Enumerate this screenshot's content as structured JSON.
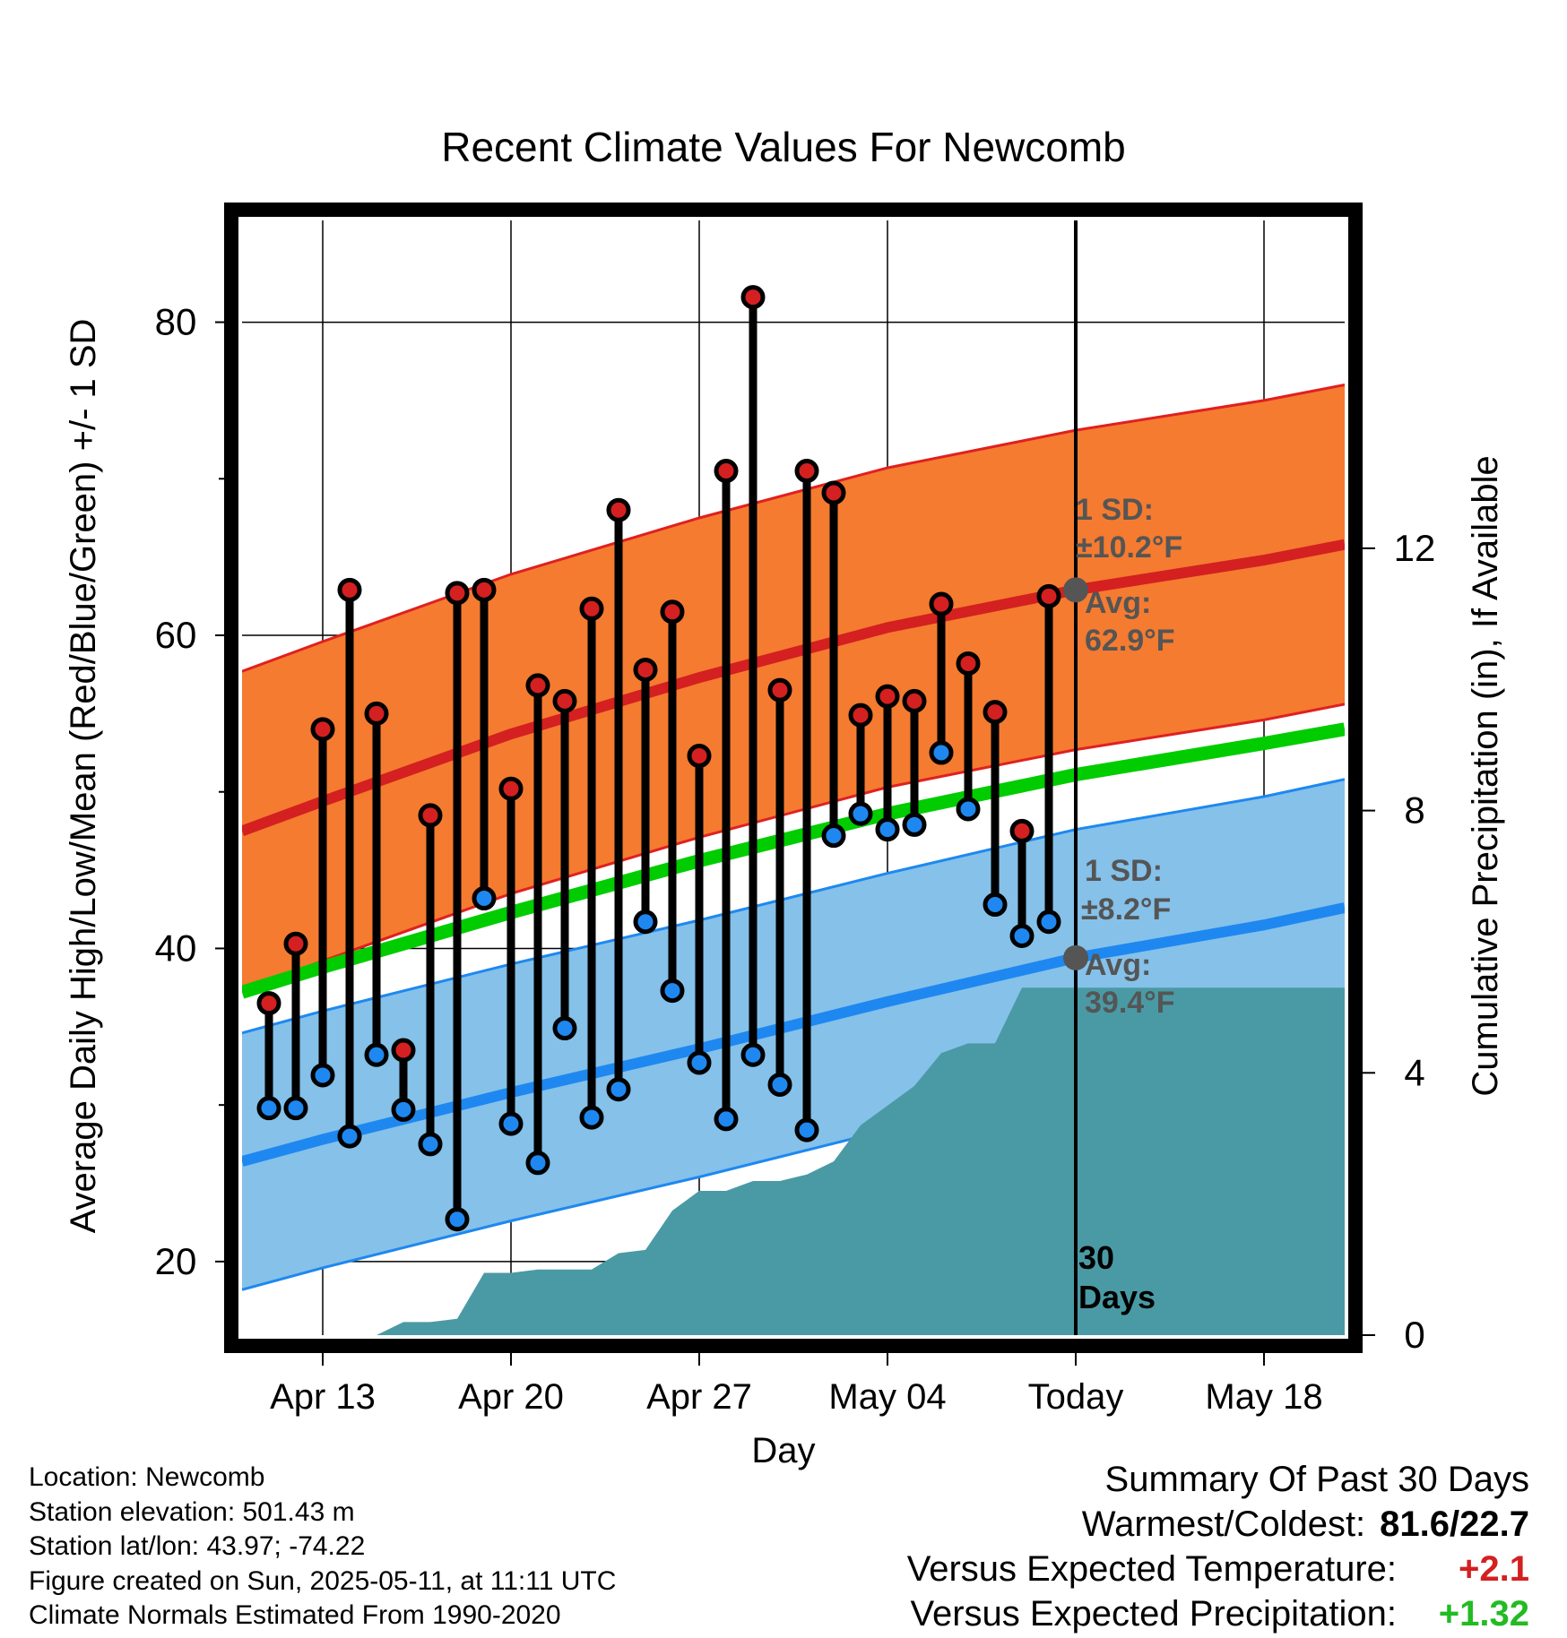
{
  "chart_data": {
    "type": "line",
    "title": "Recent Climate Values For Newcomb",
    "xlabel": "Day",
    "ylabel": "Average Daily High/Low/Mean (Red/Blue/Green) +/- 1 SD",
    "y2label": "Cumulative Precipitation (in), If Available",
    "x_ticks": [
      "Apr 13",
      "Apr 20",
      "Apr 27",
      "May 04",
      "Today",
      "May 18"
    ],
    "x_tick_dates": [
      "2025-04-13",
      "2025-04-20",
      "2025-04-27",
      "2025-05-04",
      "2025-05-11",
      "2025-05-18"
    ],
    "x_range": [
      "2025-04-10",
      "2025-05-21"
    ],
    "ylim": [
      15.3,
      86.5
    ],
    "y_ticks": [
      20,
      40,
      60,
      80
    ],
    "y2lim": [
      0,
      17
    ],
    "y2_ticks": [
      0,
      4,
      8,
      12
    ],
    "grid": true,
    "today": "2025-05-11",
    "today_label": "30 Days",
    "dates": [
      "2025-04-11",
      "2025-04-12",
      "2025-04-13",
      "2025-04-14",
      "2025-04-15",
      "2025-04-16",
      "2025-04-17",
      "2025-04-18",
      "2025-04-19",
      "2025-04-20",
      "2025-04-21",
      "2025-04-22",
      "2025-04-23",
      "2025-04-24",
      "2025-04-25",
      "2025-04-26",
      "2025-04-27",
      "2025-04-28",
      "2025-04-29",
      "2025-04-30",
      "2025-05-01",
      "2025-05-02",
      "2025-05-03",
      "2025-05-04",
      "2025-05-05",
      "2025-05-06",
      "2025-05-07",
      "2025-05-08",
      "2025-05-09",
      "2025-05-10"
    ],
    "observed_high": [
      36.5,
      40.3,
      54.0,
      62.9,
      55.0,
      33.5,
      48.5,
      62.7,
      62.9,
      50.2,
      56.8,
      55.8,
      61.7,
      68.0,
      57.8,
      61.5,
      52.3,
      70.5,
      81.6,
      56.5,
      70.5,
      69.1,
      54.9,
      56.1,
      55.8,
      62.0,
      58.2,
      55.1,
      47.5,
      62.5
    ],
    "observed_low": [
      29.8,
      29.8,
      31.9,
      28.0,
      33.2,
      29.7,
      27.5,
      22.7,
      43.2,
      28.8,
      26.3,
      34.9,
      29.2,
      31.0,
      41.7,
      37.3,
      32.7,
      29.1,
      33.2,
      31.3,
      28.4,
      47.2,
      48.6,
      47.6,
      47.9,
      52.5,
      48.9,
      42.8,
      40.8,
      41.7
    ],
    "normals": {
      "dates": [
        "2025-04-10",
        "2025-04-13",
        "2025-04-20",
        "2025-04-27",
        "2025-05-04",
        "2025-05-11",
        "2025-05-18",
        "2025-05-21"
      ],
      "high_avg": [
        47.5,
        49.4,
        53.7,
        57.3,
        60.5,
        62.9,
        64.8,
        65.8
      ],
      "high_sd": 10.2,
      "mean_avg": [
        37.2,
        38.8,
        42.3,
        45.6,
        48.6,
        51.1,
        53.1,
        54.0
      ],
      "low_avg": [
        26.4,
        27.8,
        30.8,
        33.6,
        36.6,
        39.4,
        41.5,
        42.6
      ],
      "low_sd": 8.2
    },
    "cumulative_precip": {
      "dates": [
        "2025-04-10",
        "2025-04-13",
        "2025-04-14",
        "2025-04-15",
        "2025-04-16",
        "2025-04-17",
        "2025-04-18",
        "2025-04-19",
        "2025-04-20",
        "2025-04-21",
        "2025-04-22",
        "2025-04-23",
        "2025-04-24",
        "2025-04-25",
        "2025-04-26",
        "2025-04-27",
        "2025-04-28",
        "2025-04-29",
        "2025-04-30",
        "2025-05-01",
        "2025-05-02",
        "2025-05-03",
        "2025-05-04",
        "2025-05-05",
        "2025-05-06",
        "2025-05-07",
        "2025-05-08",
        "2025-05-09",
        "2025-05-10",
        "2025-05-11",
        "2025-05-21"
      ],
      "values": [
        0,
        0,
        0,
        0,
        0.2,
        0.2,
        0.25,
        0.95,
        0.95,
        1.0,
        1.0,
        1.0,
        1.25,
        1.3,
        1.9,
        2.2,
        2.2,
        2.35,
        2.35,
        2.45,
        2.65,
        3.2,
        3.5,
        3.8,
        4.3,
        4.45,
        4.45,
        5.3,
        5.3,
        5.3,
        5.3
      ]
    },
    "annotations": {
      "high_sd_label": "1 SD:",
      "high_sd_value": "±10.2°F",
      "high_avg_label": "Avg:",
      "high_avg_value": "62.9°F",
      "low_sd_label": "1 SD:",
      "low_sd_value": "±8.2°F",
      "low_avg_label": "Avg:",
      "low_avg_value": "39.4°F"
    },
    "colors": {
      "high_band": "#F47B30",
      "high_band_edge": "#E02020",
      "high_avg_line": "#D42020",
      "low_band": "#85C1E9",
      "low_band_edge": "#1E88F0",
      "low_avg_line": "#1E88F0",
      "mean_line": "#00CC00",
      "precip": "#4A9AA5",
      "high_marker": "#D42020",
      "low_marker": "#1E88F0",
      "annotation_text": "#555555",
      "avg_marker": "#555555"
    }
  },
  "footer": {
    "location": "Location: Newcomb",
    "elevation": "Station elevation: 501.43 m",
    "latlon": "Station lat/lon: 43.97; -74.22",
    "created": "Figure created on Sun, 2025-05-11, at 11:11 UTC",
    "normals_note": "Climate Normals Estimated From 1990-2020"
  },
  "summary": {
    "title": "Summary Of Past 30 Days",
    "warmest_coldest_label": "Warmest/Coldest:",
    "warmest_coldest_value": "81.6/22.7",
    "temp_label": "Versus Expected Temperature:",
    "temp_value": "+2.1",
    "temp_color": "#D42020",
    "precip_label": "Versus Expected Precipitation:",
    "precip_value": "+1.32",
    "precip_color": "#22BB22"
  }
}
